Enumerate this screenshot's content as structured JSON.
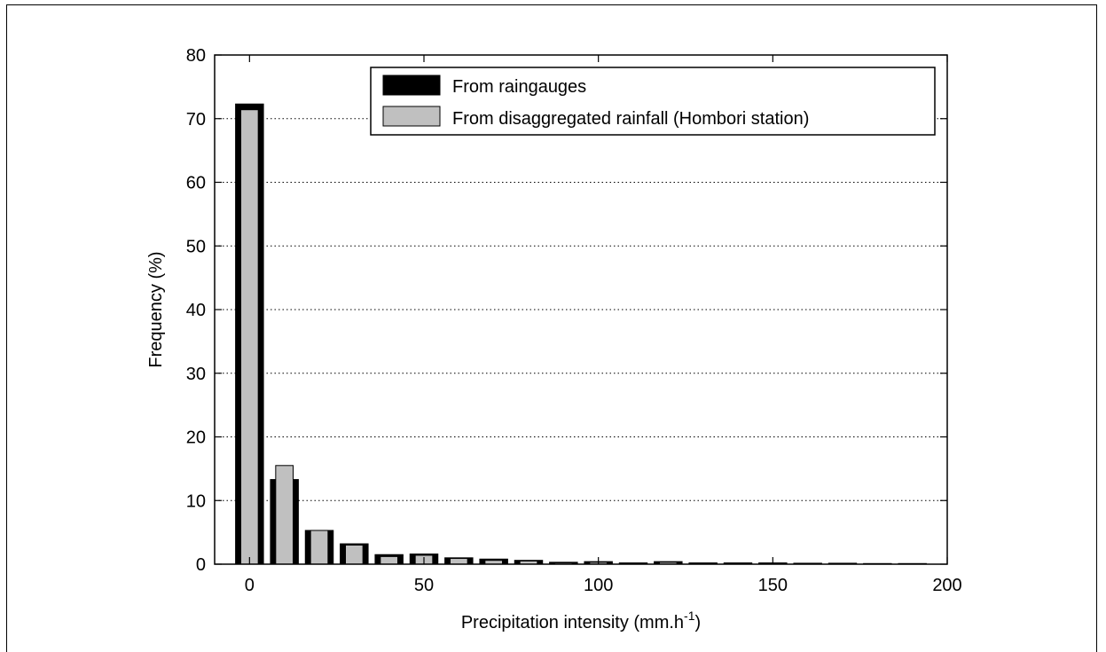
{
  "chart_data": {
    "type": "bar",
    "xlabel": "Precipitation intensity (mm.h",
    "xlabel_superscript": "-1",
    "xlabel_suffix": ")",
    "ylabel": "Frequency (%)",
    "xlim": [
      -10,
      200
    ],
    "ylim": [
      0,
      80
    ],
    "xticks": [
      0,
      50,
      100,
      150,
      200
    ],
    "yticks": [
      0,
      10,
      20,
      30,
      40,
      50,
      60,
      70,
      80
    ],
    "grid": "horizontal dotted",
    "legend_position": "top-right",
    "bin_width": 10,
    "x": [
      0,
      10,
      20,
      30,
      40,
      50,
      60,
      70,
      80,
      90,
      100,
      110,
      120,
      130,
      140,
      150,
      160,
      170,
      180,
      190
    ],
    "series": [
      {
        "name": "From raingauges",
        "color": "#000000",
        "values": [
          72.3,
          13.3,
          5.3,
          3.2,
          1.5,
          1.6,
          1.0,
          0.8,
          0.6,
          0.3,
          0.4,
          0.2,
          0.4,
          0.2,
          0.2,
          0.2,
          0.15,
          0.15,
          0.1,
          0.1
        ]
      },
      {
        "name": "From disaggregated rainfall (Hombori station)",
        "color": "#c0c0c0",
        "values": [
          71.4,
          15.5,
          5.3,
          3.0,
          1.2,
          1.4,
          0.9,
          0.6,
          0.5,
          0.2,
          0.3,
          0.1,
          0.3,
          0.1,
          0.1,
          0.1,
          0.1,
          0.05,
          0.05,
          0.05
        ]
      }
    ]
  }
}
